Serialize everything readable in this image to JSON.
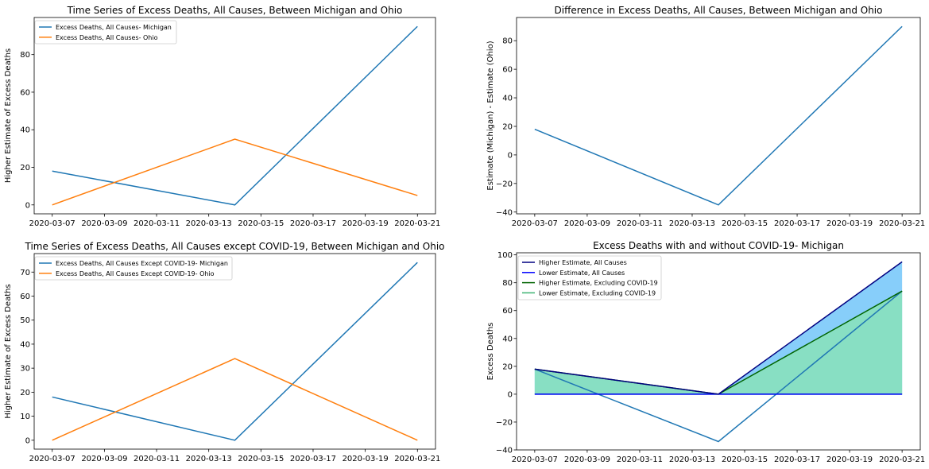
{
  "chart_data": [
    {
      "type": "line",
      "title": "Time Series of Excess Deaths, All Causes, Between Michigan and Ohio",
      "xlabel": "",
      "ylabel": "Higher Estimate of Excess Deaths",
      "x": [
        "2020-03-07",
        "2020-03-14",
        "2020-03-21"
      ],
      "xticks": [
        "2020-03-07",
        "2020-03-09",
        "2020-03-11",
        "2020-03-13",
        "2020-03-15",
        "2020-03-17",
        "2020-03-19",
        "2020-03-21"
      ],
      "yticks": [
        0,
        20,
        40,
        60,
        80
      ],
      "ylim": [
        -4.75,
        99.75
      ],
      "legend": "top-left",
      "grid": false,
      "series": [
        {
          "name": "Excess Deaths, All Causes- Michigan",
          "values": [
            18,
            0,
            95
          ],
          "color": "#1f77b4"
        },
        {
          "name": "Excess Deaths, All Causes- Ohio",
          "values": [
            0,
            35,
            5
          ],
          "color": "#ff7f0e"
        }
      ]
    },
    {
      "type": "line",
      "title": "Difference in Excess Deaths, All Causes, Between Michigan and Ohio",
      "xlabel": "",
      "ylabel": "Estimate (Michigan) - Estimate (Ohio)",
      "x": [
        "2020-03-07",
        "2020-03-14",
        "2020-03-21"
      ],
      "xticks": [
        "2020-03-07",
        "2020-03-09",
        "2020-03-11",
        "2020-03-13",
        "2020-03-15",
        "2020-03-17",
        "2020-03-19",
        "2020-03-21"
      ],
      "yticks": [
        -40,
        -20,
        0,
        20,
        40,
        60,
        80
      ],
      "ylim": [
        -41.25,
        96.25
      ],
      "grid": false,
      "series": [
        {
          "values": [
            18,
            -35,
            90
          ],
          "color": "#1f77b4"
        }
      ]
    },
    {
      "type": "line",
      "title": "Time Series of Excess Deaths, All Causes except COVID-19, Between Michigan and Ohio",
      "xlabel": "",
      "ylabel": "Higher Estimate of Excess Deaths",
      "x": [
        "2020-03-07",
        "2020-03-14",
        "2020-03-21"
      ],
      "xticks": [
        "2020-03-07",
        "2020-03-09",
        "2020-03-11",
        "2020-03-13",
        "2020-03-15",
        "2020-03-17",
        "2020-03-19",
        "2020-03-21"
      ],
      "yticks": [
        0,
        10,
        20,
        30,
        40,
        50,
        60,
        70
      ],
      "ylim": [
        -3.7,
        77.7
      ],
      "legend": "top-left",
      "grid": false,
      "series": [
        {
          "name": "Excess Deaths, All Causes Except COVID-19- Michigan",
          "values": [
            18,
            0,
            74
          ],
          "color": "#1f77b4"
        },
        {
          "name": "Excess Deaths, All Causes Except COVID-19- Ohio",
          "values": [
            0,
            34,
            0
          ],
          "color": "#ff7f0e"
        }
      ]
    },
    {
      "type": "area",
      "title": "Excess Deaths with and without COVID-19- Michigan",
      "xlabel": "",
      "ylabel": "Excess Deaths",
      "x": [
        "2020-03-07",
        "2020-03-14",
        "2020-03-21"
      ],
      "xticks": [
        "2020-03-07",
        "2020-03-09",
        "2020-03-11",
        "2020-03-13",
        "2020-03-15",
        "2020-03-17",
        "2020-03-19",
        "2020-03-21"
      ],
      "yticks": [
        -40,
        -20,
        0,
        20,
        40,
        60,
        80,
        100
      ],
      "ylim": [
        -40,
        101.5
      ],
      "legend": "top-left",
      "grid": false,
      "series": [
        {
          "name": "Higher Estimate, All Causes",
          "values": [
            18,
            0,
            95
          ],
          "color": "#000080"
        },
        {
          "name": "Lower Estimate, All Causes",
          "values": [
            0,
            0,
            0
          ],
          "color": "#0000ff"
        },
        {
          "name": "Higher Estimate, Excluding COVID-19",
          "values": [
            18,
            0,
            74
          ],
          "color": "#006400"
        },
        {
          "name": "Lower Estimate, Excluding COVID-19",
          "values": [
            0,
            0,
            0
          ],
          "color": "#3cb371"
        }
      ],
      "fills": [
        {
          "upper": [
            18,
            0,
            95
          ],
          "lower": [
            0,
            0,
            0
          ],
          "color": "#87cefa"
        },
        {
          "upper": [
            18,
            0,
            74
          ],
          "lower": [
            0,
            0,
            0
          ],
          "color": "#88dfc3"
        }
      ],
      "extra_lines": [
        {
          "values": [
            18,
            -34,
            74
          ],
          "color": "#1f77b4"
        }
      ]
    }
  ]
}
